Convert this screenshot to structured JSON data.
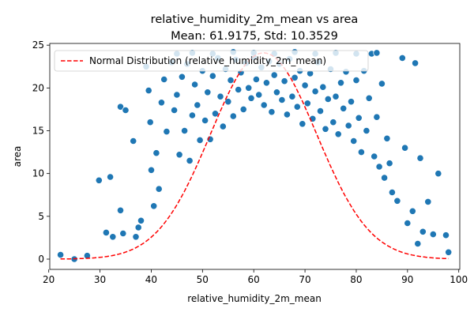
{
  "chart_data": {
    "type": "scatter",
    "title": "relative_humidity_2m_mean vs area",
    "subtitle": "Mean: 61.9175, Std: 10.3529",
    "xlabel": "relative_humidity_2m_mean",
    "ylabel": "area",
    "xlim": [
      20.2,
      100.2
    ],
    "ylim": [
      -1.2,
      25.2
    ],
    "xticks": [
      20,
      30,
      40,
      50,
      60,
      70,
      80,
      90,
      100
    ],
    "yticks": [
      0,
      5,
      10,
      15,
      20,
      25
    ],
    "grid": false,
    "legend_position": "top-left",
    "scatter_color": "#1f77b4",
    "curve_color": "#ff0000",
    "series": [
      {
        "name": "",
        "kind": "scatter",
        "points": [
          [
            22.3,
            0.5
          ],
          [
            25.0,
            0.0
          ],
          [
            27.5,
            0.4
          ],
          [
            29.8,
            9.2
          ],
          [
            31.2,
            3.1
          ],
          [
            32.0,
            9.6
          ],
          [
            32.5,
            2.6
          ],
          [
            34.0,
            17.8
          ],
          [
            34.5,
            3.0
          ],
          [
            34.0,
            5.7
          ],
          [
            35.0,
            17.4
          ],
          [
            36.5,
            13.8
          ],
          [
            37.0,
            2.6
          ],
          [
            37.5,
            3.7
          ],
          [
            38.0,
            4.5
          ],
          [
            39.0,
            22.5
          ],
          [
            39.5,
            19.7
          ],
          [
            39.8,
            16.0
          ],
          [
            40.0,
            10.4
          ],
          [
            40.5,
            6.2
          ],
          [
            41.0,
            12.4
          ],
          [
            41.5,
            8.2
          ],
          [
            42.0,
            18.3
          ],
          [
            42.5,
            21.0
          ],
          [
            43.0,
            14.9
          ],
          [
            44.0,
            23.0
          ],
          [
            44.5,
            17.4
          ],
          [
            45.0,
            19.2
          ],
          [
            45.5,
            12.2
          ],
          [
            46.0,
            21.3
          ],
          [
            46.5,
            15.0
          ],
          [
            47.0,
            22.8
          ],
          [
            47.5,
            11.5
          ],
          [
            48.0,
            16.8
          ],
          [
            48.5,
            20.4
          ],
          [
            49.0,
            18.0
          ],
          [
            49.5,
            13.9
          ],
          [
            50.0,
            22.0
          ],
          [
            50.5,
            16.2
          ],
          [
            51.0,
            19.5
          ],
          [
            51.5,
            14.0
          ],
          [
            52.0,
            21.4
          ],
          [
            52.5,
            17.0
          ],
          [
            53.0,
            23.5
          ],
          [
            53.5,
            19.0
          ],
          [
            54.0,
            15.5
          ],
          [
            54.5,
            22.2
          ],
          [
            55.0,
            18.4
          ],
          [
            55.5,
            20.9
          ],
          [
            56.0,
            16.7
          ],
          [
            56.5,
            23.3
          ],
          [
            57.0,
            19.8
          ],
          [
            57.5,
            21.8
          ],
          [
            58.0,
            17.5
          ],
          [
            58.5,
            22.9
          ],
          [
            59.0,
            20.0
          ],
          [
            59.5,
            18.8
          ],
          [
            60.0,
            23.6
          ],
          [
            60.5,
            21.0
          ],
          [
            61.0,
            19.2
          ],
          [
            61.5,
            22.4
          ],
          [
            62.0,
            18.0
          ],
          [
            62.5,
            20.6
          ],
          [
            63.0,
            23.1
          ],
          [
            63.5,
            17.2
          ],
          [
            64.0,
            21.5
          ],
          [
            64.5,
            19.5
          ],
          [
            65.0,
            22.8
          ],
          [
            65.5,
            18.6
          ],
          [
            66.0,
            20.8
          ],
          [
            66.5,
            16.9
          ],
          [
            67.0,
            23.4
          ],
          [
            67.5,
            19.0
          ],
          [
            68.0,
            21.2
          ],
          [
            68.5,
            17.8
          ],
          [
            69.0,
            22.0
          ],
          [
            69.5,
            15.8
          ],
          [
            70.0,
            20.3
          ],
          [
            70.5,
            18.2
          ],
          [
            71.0,
            21.7
          ],
          [
            71.5,
            16.4
          ],
          [
            72.0,
            19.6
          ],
          [
            72.5,
            23.0
          ],
          [
            73.0,
            17.3
          ],
          [
            73.5,
            20.1
          ],
          [
            74.0,
            15.2
          ],
          [
            74.5,
            18.7
          ],
          [
            75.0,
            22.2
          ],
          [
            75.5,
            16.0
          ],
          [
            76.0,
            19.0
          ],
          [
            76.5,
            14.6
          ],
          [
            77.0,
            20.6
          ],
          [
            77.5,
            17.6
          ],
          [
            78.0,
            21.9
          ],
          [
            78.5,
            15.6
          ],
          [
            79.0,
            18.4
          ],
          [
            79.5,
            13.8
          ],
          [
            80.0,
            20.9
          ],
          [
            80.5,
            16.5
          ],
          [
            81.0,
            12.5
          ],
          [
            81.5,
            22.0
          ],
          [
            82.0,
            15.0
          ],
          [
            82.5,
            18.8
          ],
          [
            83.0,
            24.0
          ],
          [
            83.5,
            12.0
          ],
          [
            84.0,
            16.6
          ],
          [
            84.5,
            10.8
          ],
          [
            85.0,
            20.5
          ],
          [
            85.5,
            9.5
          ],
          [
            86.0,
            14.1
          ],
          [
            86.5,
            11.2
          ],
          [
            87.0,
            7.8
          ],
          [
            88.0,
            6.8
          ],
          [
            89.0,
            23.5
          ],
          [
            89.5,
            13.0
          ],
          [
            90.0,
            4.2
          ],
          [
            91.0,
            5.6
          ],
          [
            91.5,
            22.9
          ],
          [
            92.0,
            1.8
          ],
          [
            92.5,
            11.8
          ],
          [
            93.0,
            3.2
          ],
          [
            94.0,
            6.7
          ],
          [
            95.0,
            2.9
          ],
          [
            96.0,
            10.0
          ],
          [
            97.5,
            2.8
          ],
          [
            98.0,
            0.8
          ],
          [
            45.0,
            24.0
          ],
          [
            48.0,
            24.1
          ],
          [
            52.0,
            24.0
          ],
          [
            56.0,
            24.2
          ],
          [
            60.0,
            24.1
          ],
          [
            64.0,
            24.0
          ],
          [
            68.0,
            24.2
          ],
          [
            72.0,
            24.0
          ],
          [
            76.0,
            24.1
          ],
          [
            80.0,
            24.0
          ],
          [
            84.0,
            24.1
          ]
        ]
      },
      {
        "name": "Normal Distribution (relative_humidity_2m_mean)",
        "kind": "line",
        "dashed": true,
        "mean": 61.9175,
        "std": 10.3529,
        "peak": 24.1,
        "x_range": [
          22.3,
          98.0
        ]
      }
    ]
  }
}
